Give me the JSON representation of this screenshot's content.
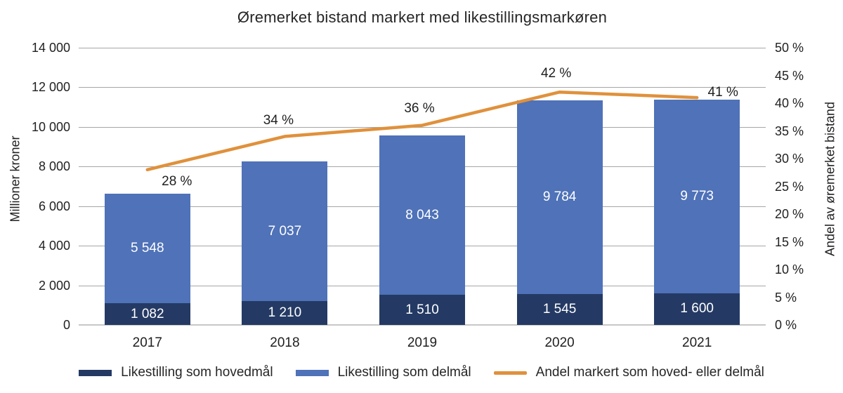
{
  "title": "Øremerket bistand markert med likestillingsmarkøren",
  "left_axis": {
    "label": "Millioner kroner",
    "ticks": [
      "14 000",
      "12 000",
      "10 000",
      "8 000",
      "6 000",
      "4 000",
      "2 000",
      "0"
    ],
    "min": 0,
    "max": 14000,
    "step": 2000
  },
  "right_axis": {
    "label": "Andel av øremerket bistand",
    "ticks": [
      "50 %",
      "45 %",
      "40 %",
      "35 %",
      "30 %",
      "25 %",
      "20 %",
      "15 %",
      "10 %",
      "5 %",
      "0 %"
    ],
    "min": 0,
    "max": 50,
    "step": 5
  },
  "chart_data": {
    "type": "combo: stacked-bar + line",
    "categories": [
      "2017",
      "2018",
      "2019",
      "2020",
      "2021"
    ],
    "series": [
      {
        "name": "Likestilling som hovedmål",
        "type": "bar",
        "axis": "left",
        "color": "#243A64",
        "values": [
          1082,
          1210,
          1510,
          1545,
          1600
        ],
        "labels": [
          "1 082",
          "1 210",
          "1 510",
          "1 545",
          "1 600"
        ]
      },
      {
        "name": "Likestilling som delmål",
        "type": "bar",
        "axis": "left",
        "color": "#4F72B8",
        "values": [
          5548,
          7037,
          8043,
          9784,
          9773
        ],
        "labels": [
          "5 548",
          "7 037",
          "8 043",
          "9 784",
          "9 773"
        ]
      },
      {
        "name": "Andel markert som hoved- eller delmål",
        "type": "line",
        "axis": "right",
        "color": "#E0913C",
        "values": [
          28,
          34,
          36,
          42,
          41
        ],
        "labels": [
          "28 %",
          "34 %",
          "36 %",
          "42 %",
          "41 %"
        ]
      }
    ],
    "left_ylim": [
      0,
      14000
    ],
    "right_ylim": [
      0,
      50
    ],
    "grid": true,
    "legend_position": "bottom"
  },
  "colors": {
    "grid": "#a6a6a6",
    "axis_line": "#c8c7c7",
    "text": "#1f1f1f",
    "bar_value_text": "#ffffff",
    "background": "#ffffff"
  }
}
